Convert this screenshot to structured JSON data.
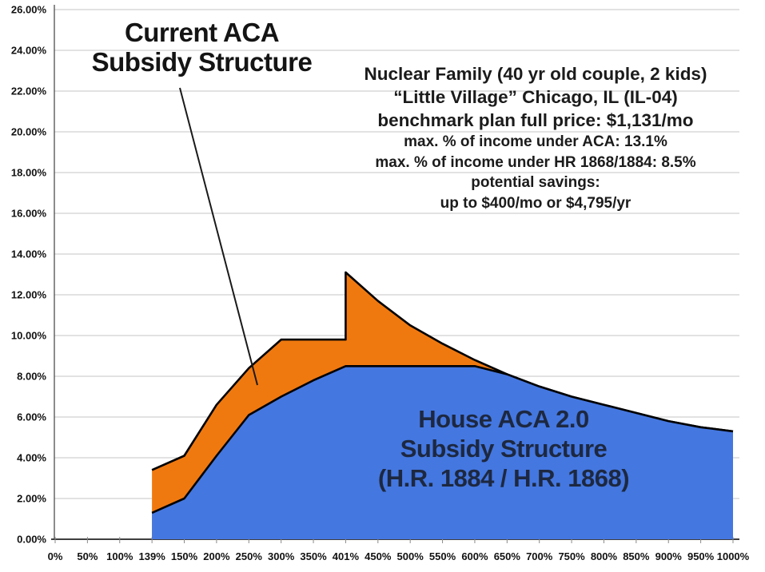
{
  "title": {
    "line1": "Current ACA",
    "line2": "Subsidy Structure"
  },
  "house_label": {
    "line1": "House ACA 2.0",
    "line2": "Subsidy Structure",
    "line3": "(H.R. 1884 / H.R. 1868)"
  },
  "annotation": {
    "line1": "Nuclear Family (40 yr old couple, 2 kids)",
    "line2": "“Little Village” Chicago, IL (IL-04)",
    "line3": "benchmark plan full price: $1,131/mo",
    "line4": "max. % of income under ACA: 13.1%",
    "line5": "max. % of income under HR 1868/1884: 8.5%",
    "line6": "potential savings:",
    "line7": "up to $400/mo or $4,795/yr"
  },
  "colors": {
    "aca_orange": "#F0790F",
    "house_blue": "#4477E0",
    "boundary_line": "#000000",
    "gridline": "#C4C4C4",
    "axis_line": "#5a5a5a",
    "tick": "#8a8a8a",
    "axis_text": "#111111",
    "house_label_text": "#1d2840"
  },
  "chart_data": {
    "type": "area",
    "title": "Current ACA Subsidy Structure vs House ACA 2.0 Subsidy Structure",
    "x_categories": [
      "0%",
      "50%",
      "100%",
      "139%",
      "150%",
      "200%",
      "250%",
      "300%",
      "350%",
      "401%",
      "450%",
      "500%",
      "550%",
      "600%",
      "650%",
      "700%",
      "750%",
      "800%",
      "850%",
      "900%",
      "950%",
      "1000%"
    ],
    "y_axis": {
      "min": 0,
      "max": 26,
      "tick_step": 2
    },
    "y_tick_labels": [
      "0.00%",
      "2.00%",
      "4.00%",
      "6.00%",
      "8.00%",
      "10.00%",
      "12.00%",
      "14.00%",
      "16.00%",
      "18.00%",
      "20.00%",
      "22.00%",
      "24.00%",
      "26.00%"
    ],
    "grid": true,
    "legend": "none (labels drawn inside chart)",
    "series": [
      {
        "name": "Current ACA Subsidy Structure",
        "color": "#F0790F",
        "values": [
          null,
          null,
          null,
          3.4,
          4.1,
          6.6,
          8.4,
          9.8,
          9.8,
          9.8,
          11.7,
          10.5,
          9.6,
          8.8,
          8.1,
          7.5,
          7.0,
          6.6,
          6.2,
          5.8,
          5.5,
          5.3
        ],
        "cliff": {
          "at_category": "401%",
          "jump_from": 9.8,
          "jump_to": 13.1
        }
      },
      {
        "name": "House ACA 2.0 Subsidy Structure (H.R. 1884 / H.R. 1868)",
        "color": "#4477E0",
        "values": [
          null,
          null,
          null,
          1.3,
          2.0,
          4.1,
          6.1,
          7.0,
          7.8,
          8.5,
          8.5,
          8.5,
          8.5,
          8.5,
          8.1,
          7.5,
          7.0,
          6.6,
          6.2,
          5.8,
          5.5,
          5.3
        ]
      }
    ]
  }
}
